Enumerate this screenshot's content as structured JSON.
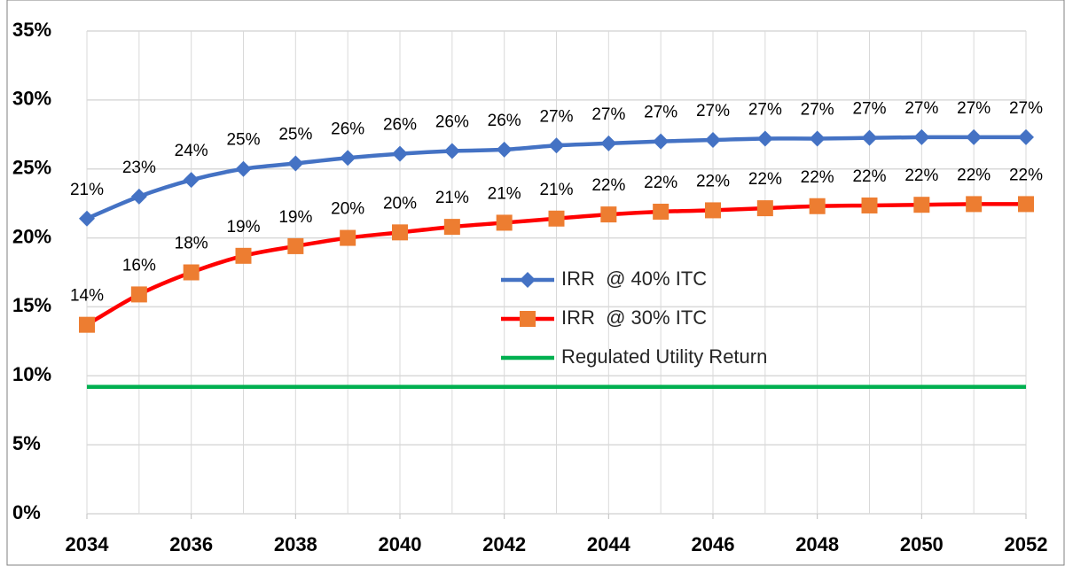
{
  "chart_data": {
    "type": "line",
    "x": [
      2034,
      2035,
      2036,
      2037,
      2038,
      2039,
      2040,
      2041,
      2042,
      2043,
      2044,
      2045,
      2046,
      2047,
      2048,
      2049,
      2050,
      2051,
      2052
    ],
    "xlim": [
      2034,
      2052
    ],
    "xticks": [
      2034,
      2036,
      2038,
      2040,
      2042,
      2044,
      2046,
      2048,
      2050,
      2052
    ],
    "ylim": [
      0,
      35
    ],
    "yticks": [
      {
        "value": 0,
        "label": "0%"
      },
      {
        "value": 5,
        "label": "5%"
      },
      {
        "value": 10,
        "label": "10%"
      },
      {
        "value": 15,
        "label": "15%"
      },
      {
        "value": 20,
        "label": "20%"
      },
      {
        "value": 25,
        "label": "25%"
      },
      {
        "value": 30,
        "label": "30%"
      },
      {
        "value": 35,
        "label": "35%"
      }
    ],
    "grid": true,
    "series": [
      {
        "name": "IRR  @ 40% ITC",
        "color": "#4472c4",
        "marker": "diamond",
        "values": [
          21.4,
          23.0,
          24.2,
          25.0,
          25.4,
          25.8,
          26.1,
          26.3,
          26.4,
          26.7,
          26.85,
          27.0,
          27.1,
          27.2,
          27.2,
          27.25,
          27.3,
          27.3,
          27.3
        ],
        "value_labels": [
          "21%",
          "23%",
          "24%",
          "25%",
          "25%",
          "26%",
          "26%",
          "26%",
          "26%",
          "27%",
          "27%",
          "27%",
          "27%",
          "27%",
          "27%",
          "27%",
          "27%",
          "27%",
          "27%"
        ]
      },
      {
        "name": "IRR  @ 30% ITC",
        "color": "#ff0000",
        "marker_color": "#ed7d31",
        "marker": "square",
        "values": [
          13.7,
          15.9,
          17.5,
          18.7,
          19.4,
          20.0,
          20.4,
          20.8,
          21.1,
          21.4,
          21.7,
          21.9,
          22.0,
          22.15,
          22.3,
          22.35,
          22.4,
          22.45,
          22.45
        ],
        "value_labels": [
          "14%",
          "16%",
          "18%",
          "19%",
          "19%",
          "20%",
          "20%",
          "21%",
          "21%",
          "21%",
          "22%",
          "22%",
          "22%",
          "22%",
          "22%",
          "22%",
          "22%",
          "22%",
          "22%"
        ]
      },
      {
        "name": "Regulated Utility Return",
        "color": "#00b050",
        "values": [
          9.2,
          9.2,
          9.2,
          9.2,
          9.2,
          9.2,
          9.2,
          9.2,
          9.2,
          9.2,
          9.2,
          9.2,
          9.2,
          9.2,
          9.2,
          9.2,
          9.2,
          9.2,
          9.2
        ]
      }
    ]
  }
}
